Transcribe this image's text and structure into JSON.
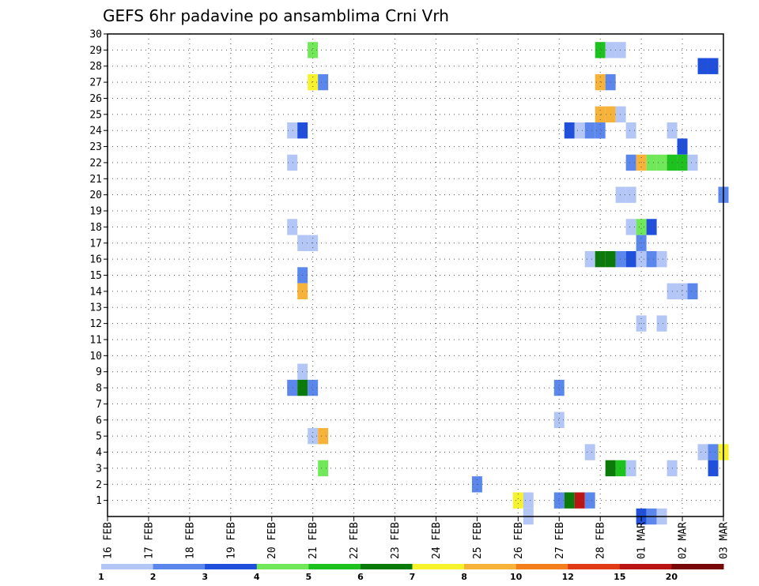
{
  "chart_data": {
    "type": "heatmap",
    "title": "GEFS 6hr padavine po ansamblima Crni Vrh",
    "y_ticks": [
      "1",
      "2",
      "3",
      "4",
      "5",
      "6",
      "7",
      "8",
      "9",
      "10",
      "11",
      "12",
      "13",
      "14",
      "15",
      "16",
      "17",
      "18",
      "19",
      "20",
      "21",
      "22",
      "23",
      "24",
      "25",
      "26",
      "27",
      "28",
      "29",
      "30"
    ],
    "ylim": [
      0,
      30
    ],
    "x_ticks": [
      "16 FEB",
      "17 FEB",
      "18 FEB",
      "19 FEB",
      "20 FEB",
      "21 FEB",
      "22 FEB",
      "23 FEB",
      "24 FEB",
      "25 FEB",
      "26 FEB",
      "27 FEB",
      "28 FEB",
      "01 MAR",
      "02 MAR",
      "03 MAR"
    ],
    "xlim_steps": [
      0,
      60
    ],
    "grid": true,
    "legend_colors": [
      "#b3c6f5",
      "#5b87ec",
      "#1f4fdb",
      "#70e85a",
      "#1ec21e",
      "#0a7a0a",
      "#f6f22b",
      "#f7b23a",
      "#f57e1c",
      "#e03a17",
      "#bb1414",
      "#780707"
    ],
    "legend_labels": [
      "1",
      "2",
      "3",
      "4",
      "5",
      "6",
      "7",
      "8",
      "10",
      "12",
      "15",
      "20"
    ],
    "cells": [
      {
        "member": 29,
        "step": 20,
        "color": "#70e85a"
      },
      {
        "member": 27,
        "step": 20,
        "color": "#f6f22b"
      },
      {
        "member": 27,
        "step": 21,
        "color": "#5b87ec"
      },
      {
        "member": 24,
        "step": 18,
        "color": "#b3c6f5"
      },
      {
        "member": 24,
        "step": 19,
        "color": "#1f4fdb"
      },
      {
        "member": 22,
        "step": 18,
        "color": "#b3c6f5"
      },
      {
        "member": 18,
        "step": 18,
        "color": "#b3c6f5"
      },
      {
        "member": 17,
        "step": 19,
        "color": "#b3c6f5"
      },
      {
        "member": 17,
        "step": 20,
        "color": "#b3c6f5"
      },
      {
        "member": 15,
        "step": 19,
        "color": "#5b87ec"
      },
      {
        "member": 14,
        "step": 19,
        "color": "#f7b23a"
      },
      {
        "member": 9,
        "step": 19,
        "color": "#b3c6f5"
      },
      {
        "member": 8,
        "step": 18,
        "color": "#5b87ec"
      },
      {
        "member": 8,
        "step": 19,
        "color": "#0a7a0a"
      },
      {
        "member": 8,
        "step": 20,
        "color": "#5b87ec"
      },
      {
        "member": 5,
        "step": 20,
        "color": "#b3c6f5"
      },
      {
        "member": 5,
        "step": 21,
        "color": "#f7b23a"
      },
      {
        "member": 3,
        "step": 21,
        "color": "#70e85a"
      },
      {
        "member": 2,
        "step": 36,
        "color": "#5b87ec"
      },
      {
        "member": 1,
        "step": 40,
        "color": "#f6f22b"
      },
      {
        "member": 1,
        "step": 41,
        "color": "#b3c6f5"
      },
      {
        "member": 0,
        "step": 41,
        "color": "#b3c6f5"
      },
      {
        "member": 1,
        "step": 44,
        "color": "#5b87ec"
      },
      {
        "member": 1,
        "step": 45,
        "color": "#0a7a0a"
      },
      {
        "member": 1,
        "step": 46,
        "color": "#bb1414"
      },
      {
        "member": 1,
        "step": 47,
        "color": "#5b87ec"
      },
      {
        "member": 8,
        "step": 44,
        "color": "#5b87ec"
      },
      {
        "member": 6,
        "step": 44,
        "color": "#b3c6f5"
      },
      {
        "member": 4,
        "step": 47,
        "color": "#b3c6f5"
      },
      {
        "member": 3,
        "step": 49,
        "color": "#0a7a0a"
      },
      {
        "member": 3,
        "step": 50,
        "color": "#1ec21e"
      },
      {
        "member": 3,
        "step": 51,
        "color": "#b3c6f5"
      },
      {
        "member": 3,
        "step": 55,
        "color": "#b3c6f5"
      },
      {
        "member": 29,
        "step": 48,
        "color": "#1ec21e"
      },
      {
        "member": 29,
        "step": 49,
        "color": "#b3c6f5"
      },
      {
        "member": 29,
        "step": 50,
        "color": "#b3c6f5"
      },
      {
        "member": 27,
        "step": 48,
        "color": "#f7b23a"
      },
      {
        "member": 27,
        "step": 49,
        "color": "#5b87ec"
      },
      {
        "member": 25,
        "step": 48,
        "color": "#f7b23a"
      },
      {
        "member": 25,
        "step": 49,
        "color": "#f7b23a"
      },
      {
        "member": 25,
        "step": 50,
        "color": "#b3c6f5"
      },
      {
        "member": 24,
        "step": 45,
        "color": "#1f4fdb"
      },
      {
        "member": 24,
        "step": 46,
        "color": "#b3c6f5"
      },
      {
        "member": 24,
        "step": 47,
        "color": "#5b87ec"
      },
      {
        "member": 24,
        "step": 48,
        "color": "#5b87ec"
      },
      {
        "member": 24,
        "step": 51,
        "color": "#b3c6f5"
      },
      {
        "member": 24,
        "step": 55,
        "color": "#b3c6f5"
      },
      {
        "member": 23,
        "step": 56,
        "color": "#1f4fdb"
      },
      {
        "member": 22,
        "step": 51,
        "color": "#5b87ec"
      },
      {
        "member": 22,
        "step": 52,
        "color": "#f7b23a"
      },
      {
        "member": 22,
        "step": 53,
        "color": "#70e85a"
      },
      {
        "member": 22,
        "step": 54,
        "color": "#70e85a"
      },
      {
        "member": 22,
        "step": 55,
        "color": "#1ec21e"
      },
      {
        "member": 22,
        "step": 56,
        "color": "#1ec21e"
      },
      {
        "member": 22,
        "step": 57,
        "color": "#b3c6f5"
      },
      {
        "member": 20,
        "step": 50,
        "color": "#b3c6f5"
      },
      {
        "member": 20,
        "step": 51,
        "color": "#b3c6f5"
      },
      {
        "member": 20,
        "step": 60,
        "color": "#5b87ec"
      },
      {
        "member": 18,
        "step": 51,
        "color": "#b3c6f5"
      },
      {
        "member": 18,
        "step": 52,
        "color": "#70e85a"
      },
      {
        "member": 18,
        "step": 53,
        "color": "#1f4fdb"
      },
      {
        "member": 17,
        "step": 52,
        "color": "#5b87ec"
      },
      {
        "member": 16,
        "step": 47,
        "color": "#b3c6f5"
      },
      {
        "member": 16,
        "step": 48,
        "color": "#0a7a0a"
      },
      {
        "member": 16,
        "step": 49,
        "color": "#0a7a0a"
      },
      {
        "member": 16,
        "step": 50,
        "color": "#5b87ec"
      },
      {
        "member": 16,
        "step": 51,
        "color": "#1f4fdb"
      },
      {
        "member": 16,
        "step": 52,
        "color": "#b3c6f5"
      },
      {
        "member": 16,
        "step": 53,
        "color": "#5b87ec"
      },
      {
        "member": 16,
        "step": 54,
        "color": "#b3c6f5"
      },
      {
        "member": 14,
        "step": 55,
        "color": "#b3c6f5"
      },
      {
        "member": 14,
        "step": 56,
        "color": "#b3c6f5"
      },
      {
        "member": 14,
        "step": 57,
        "color": "#5b87ec"
      },
      {
        "member": 12,
        "step": 52,
        "color": "#b3c6f5"
      },
      {
        "member": 12,
        "step": 54,
        "color": "#b3c6f5"
      },
      {
        "member": 28,
        "step": 58,
        "color": "#1f4fdb"
      },
      {
        "member": 28,
        "step": 59,
        "color": "#1f4fdb"
      },
      {
        "member": 4,
        "step": 58,
        "color": "#b3c6f5"
      },
      {
        "member": 4,
        "step": 59,
        "color": "#5b87ec"
      },
      {
        "member": 4,
        "step": 60,
        "color": "#f6f22b"
      },
      {
        "member": 3,
        "step": 59,
        "color": "#1f4fdb"
      },
      {
        "member": 0,
        "step": 52,
        "color": "#1f4fdb"
      },
      {
        "member": 0,
        "step": 53,
        "color": "#5b87ec"
      },
      {
        "member": 0,
        "step": 54,
        "color": "#b3c6f5"
      }
    ]
  }
}
